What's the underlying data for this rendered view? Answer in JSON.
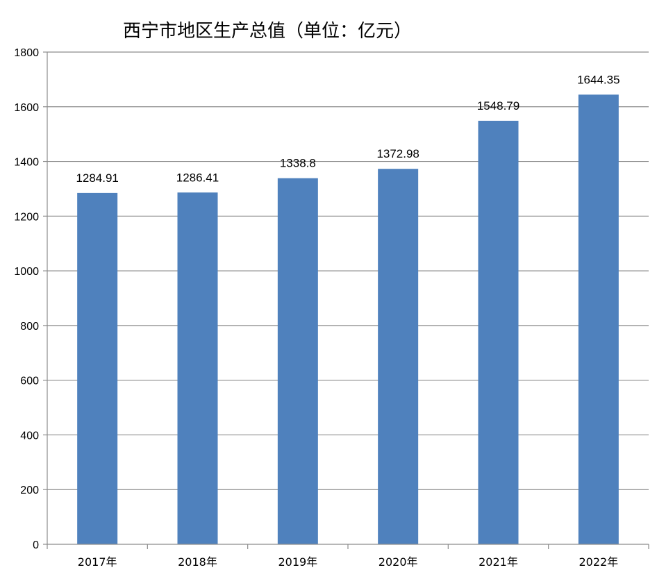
{
  "chart_data": {
    "type": "bar",
    "title": "西宁市地区生产总值（单位：亿元）",
    "categories": [
      "2017年",
      "2018年",
      "2019年",
      "2020年",
      "2021年",
      "2022年"
    ],
    "values": [
      1284.91,
      1286.41,
      1338.8,
      1372.98,
      1548.79,
      1644.35
    ],
    "data_labels": [
      "1284.91",
      "1286.41",
      "1338.8",
      "1372.98",
      "1548.79",
      "1644.35"
    ],
    "xlabel": "",
    "ylabel": "",
    "ylim": [
      0,
      1800
    ],
    "yticks": [
      0,
      200,
      400,
      600,
      800,
      1000,
      1200,
      1400,
      1600,
      1800
    ],
    "grid": true,
    "legend": "none",
    "bar_color": "#4F81BD"
  }
}
